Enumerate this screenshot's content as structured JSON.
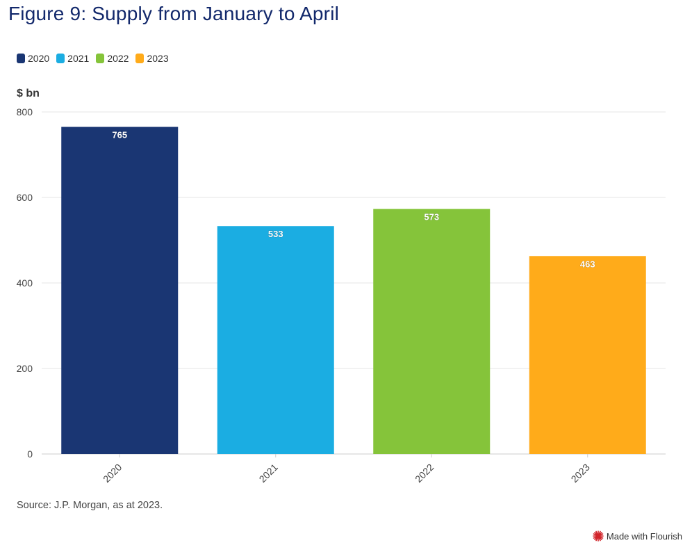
{
  "title": "Figure 9: Supply from January to April",
  "legend": [
    {
      "label": "2020",
      "color": "#1a3673"
    },
    {
      "label": "2021",
      "color": "#1badE2"
    },
    {
      "label": "2022",
      "color": "#85c43a"
    },
    {
      "label": "2023",
      "color": "#ffab1a"
    }
  ],
  "source": "Source: J.P. Morgan, as at 2023.",
  "credit": {
    "label": "Made with Flourish",
    "icon": "flourish-logo-icon"
  },
  "chart_data": {
    "type": "bar",
    "categories": [
      "2020",
      "2021",
      "2022",
      "2023"
    ],
    "values": [
      765,
      533,
      573,
      463
    ],
    "colors": [
      "#1a3673",
      "#1badE2",
      "#85c43a",
      "#ffab1a"
    ],
    "title": "Figure 9: Supply from January to April",
    "xlabel": "",
    "ylabel": "$ bn",
    "ylim": [
      0,
      800
    ],
    "yticks": [
      0,
      200,
      400,
      600,
      800
    ],
    "grid": true,
    "data_labels": true,
    "legend_position": "top-left"
  }
}
